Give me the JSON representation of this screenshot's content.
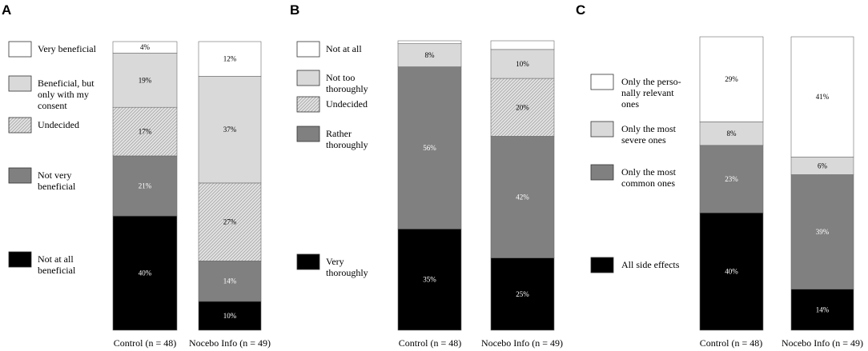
{
  "colors": {
    "white": "#ffffff",
    "light": "#d9d9d9",
    "hatch": "#d4d4d4",
    "mid": "#808080",
    "black": "#000000"
  },
  "chart_data": [
    {
      "panel": "A",
      "type": "bar",
      "stacked": true,
      "orientation": "vertical-100-percent",
      "categories": [
        "Control (n = 48)",
        "Nocebo Info (n = 49)"
      ],
      "series": [
        {
          "name": "Not at all beneficial",
          "style": "black",
          "values": [
            40,
            10
          ],
          "labels": [
            "40%",
            "10%"
          ]
        },
        {
          "name": "Not very beneficial",
          "style": "mid",
          "values": [
            21,
            14
          ],
          "labels": [
            "21%",
            "14%"
          ]
        },
        {
          "name": "Undecided",
          "style": "hatch",
          "values": [
            17,
            27
          ],
          "labels": [
            "17%",
            "27%"
          ]
        },
        {
          "name": "Beneficial, but only with my consent",
          "style": "light",
          "values": [
            19,
            37
          ],
          "labels": [
            "19%",
            "37%"
          ]
        },
        {
          "name": "Very beneficial",
          "style": "white",
          "values": [
            4,
            12
          ],
          "labels": [
            "4%",
            "12%"
          ]
        }
      ],
      "legend": [
        {
          "lines": [
            "Very beneficial"
          ],
          "style": "white"
        },
        {
          "lines": [
            "Beneficial, but",
            "only with my",
            "consent"
          ],
          "style": "light"
        },
        {
          "lines": [
            "Undecided"
          ],
          "style": "hatch"
        },
        {
          "lines": [
            "Not very",
            "beneficial"
          ],
          "style": "mid"
        },
        {
          "lines": [
            "Not at all",
            "beneficial"
          ],
          "style": "black"
        }
      ]
    },
    {
      "panel": "B",
      "type": "bar",
      "stacked": true,
      "orientation": "vertical-100-percent",
      "categories": [
        "Control (n = 48)",
        "Nocebo Info (n = 49)"
      ],
      "series": [
        {
          "name": "Very thoroughly",
          "style": "black",
          "values": [
            35,
            25
          ],
          "labels": [
            "35%",
            "25%"
          ]
        },
        {
          "name": "Rather thoroughly",
          "style": "mid",
          "values": [
            56,
            42
          ],
          "labels": [
            "56%",
            "42%"
          ]
        },
        {
          "name": "Undecided",
          "style": "hatch",
          "values": [
            0,
            20
          ],
          "labels": [
            "",
            "20%"
          ]
        },
        {
          "name": "Not too thoroughly",
          "style": "light",
          "values": [
            8,
            10
          ],
          "labels": [
            "8%",
            "10%"
          ]
        },
        {
          "name": "Not at all",
          "style": "white",
          "values": [
            1,
            3
          ],
          "labels": [
            "",
            ""
          ]
        }
      ],
      "legend": [
        {
          "lines": [
            "Not at all"
          ],
          "style": "white"
        },
        {
          "lines": [
            "Not too",
            "thoroughly"
          ],
          "style": "light"
        },
        {
          "lines": [
            "Undecided"
          ],
          "style": "hatch"
        },
        {
          "lines": [
            "Rather",
            "thoroughly"
          ],
          "style": "mid"
        },
        {
          "lines": [
            "Very",
            "thoroughly"
          ],
          "style": "black"
        }
      ]
    },
    {
      "panel": "C",
      "type": "bar",
      "stacked": true,
      "orientation": "vertical-100-percent",
      "categories": [
        "Control (n = 48)",
        "Nocebo Info (n = 49)"
      ],
      "series": [
        {
          "name": "All side effects",
          "style": "black",
          "values": [
            40,
            14
          ],
          "labels": [
            "40%",
            "14%"
          ]
        },
        {
          "name": "Only the most common ones",
          "style": "mid",
          "values": [
            23,
            39
          ],
          "labels": [
            "23%",
            "39%"
          ]
        },
        {
          "name": "Only the most severe ones",
          "style": "light",
          "values": [
            8,
            6
          ],
          "labels": [
            "8%",
            "6%"
          ]
        },
        {
          "name": "Only the personally relevant ones",
          "style": "white",
          "values": [
            29,
            41
          ],
          "labels": [
            "29%",
            "41%"
          ]
        }
      ],
      "legend": [
        {
          "lines": [
            "Only the perso-",
            "nally relevant",
            "ones"
          ],
          "style": "white"
        },
        {
          "lines": [
            "Only the most",
            "severe ones"
          ],
          "style": "light"
        },
        {
          "lines": [
            "Only the most",
            "common ones"
          ],
          "style": "mid"
        },
        {
          "lines": [
            "All side effects"
          ],
          "style": "black"
        }
      ]
    }
  ]
}
